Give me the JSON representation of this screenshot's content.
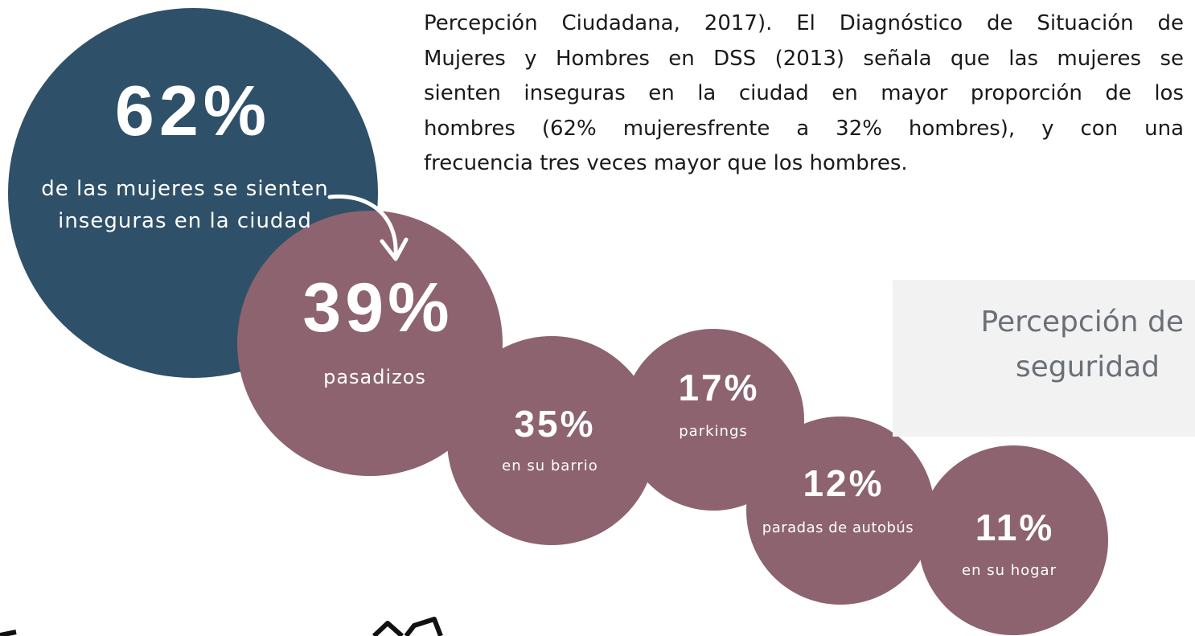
{
  "paragraph": {
    "lines": [
      "Percepción Ciudadana, 2017). El Diagnóstico de Situación de",
      "Mujeres y Hombres en DSS (2013) señala que las mujeres se",
      "sienten inseguras en la ciudad en mayor proporción de los",
      "hombres (62% mujeresfrente a 32% hombres), y con una",
      "frecuencia tres veces mayor que los hombres."
    ]
  },
  "main": {
    "figure": "62%",
    "label_lines": [
      "de las mujeres se sienten",
      "inseguras en la ciudad"
    ]
  },
  "bubbles": [
    {
      "figure": "39%",
      "label": "pasadizos"
    },
    {
      "figure": "35%",
      "label": "en su barrio"
    },
    {
      "figure": "17%",
      "label": "parkings"
    },
    {
      "figure": "12%",
      "label": "paradas de autobús"
    },
    {
      "figure": "11%",
      "label": "en su  hogar"
    }
  ],
  "box": {
    "lines": [
      "Percepción de",
      "seguridad"
    ]
  }
}
